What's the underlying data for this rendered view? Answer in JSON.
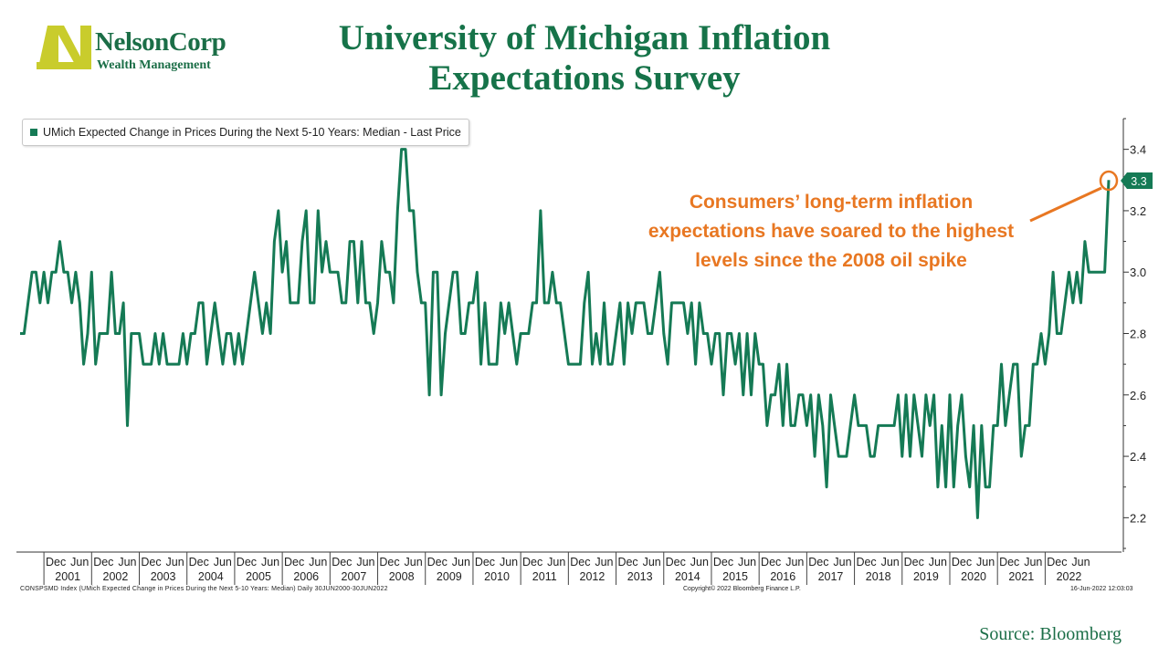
{
  "logo": {
    "name": "NelsonCorp",
    "subtitle": "Wealth Management"
  },
  "title_line1": "University of Michigan Inflation",
  "title_line2": "Expectations Survey",
  "legend_label": "UMich Expected Change in Prices During the Next 5-10 Years: Median - Last Price",
  "annotation": {
    "line1": "Consumers’ long-term inflation",
    "line2": "expectations have soared to the highest",
    "line3": "levels since the 2008 oil spike"
  },
  "last_price_badge": "3.3",
  "footer": {
    "left": "CONSPSMD Index (UMich Expected Change in Prices During the Next 5-10 Years: Median)  Daily 30JUN2000-30JUN2022",
    "middle": "Copyright© 2022 Bloomberg Finance L.P.",
    "right": "16-Jun-2022 12:03:03"
  },
  "source": "Source: Bloomberg",
  "colors": {
    "series": "#157a55",
    "title": "#167349",
    "annotation": "#e87722"
  },
  "chart_data": {
    "type": "line",
    "series": [
      {
        "name": "UMich Expected Change in Prices During the Next 5-10 Years: Median - Last Price",
        "start": "2000-06",
        "frequency": "monthly",
        "values": [
          2.8,
          2.8,
          2.9,
          3.0,
          3.0,
          2.9,
          3.0,
          2.9,
          3.0,
          3.0,
          3.1,
          3.0,
          3.0,
          2.9,
          3.0,
          2.9,
          2.7,
          2.8,
          3.0,
          2.7,
          2.8,
          2.8,
          2.8,
          3.0,
          2.8,
          2.8,
          2.9,
          2.5,
          2.8,
          2.8,
          2.8,
          2.7,
          2.7,
          2.7,
          2.8,
          2.7,
          2.8,
          2.7,
          2.7,
          2.7,
          2.7,
          2.8,
          2.7,
          2.8,
          2.8,
          2.9,
          2.9,
          2.7,
          2.8,
          2.9,
          2.8,
          2.7,
          2.8,
          2.8,
          2.7,
          2.8,
          2.7,
          2.8,
          2.9,
          3.0,
          2.9,
          2.8,
          2.9,
          2.8,
          3.1,
          3.2,
          3.0,
          3.1,
          2.9,
          2.9,
          2.9,
          3.1,
          3.2,
          2.9,
          2.9,
          3.2,
          3.0,
          3.1,
          3.0,
          3.0,
          3.0,
          2.9,
          2.9,
          3.1,
          3.1,
          2.9,
          3.1,
          2.9,
          2.9,
          2.8,
          2.9,
          3.1,
          3.0,
          3.0,
          2.9,
          3.2,
          3.4,
          3.4,
          3.2,
          3.2,
          3.0,
          2.9,
          2.9,
          2.6,
          3.0,
          3.0,
          2.6,
          2.8,
          2.9,
          3.0,
          3.0,
          2.8,
          2.8,
          2.9,
          2.9,
          3.0,
          2.7,
          2.9,
          2.7,
          2.7,
          2.7,
          2.9,
          2.8,
          2.9,
          2.8,
          2.7,
          2.8,
          2.8,
          2.8,
          2.9,
          2.9,
          3.2,
          2.9,
          2.9,
          3.0,
          2.9,
          2.9,
          2.8,
          2.7,
          2.7,
          2.7,
          2.7,
          2.9,
          3.0,
          2.7,
          2.8,
          2.7,
          2.9,
          2.7,
          2.7,
          2.8,
          2.9,
          2.7,
          2.9,
          2.8,
          2.9,
          2.9,
          2.9,
          2.8,
          2.8,
          2.9,
          3.0,
          2.8,
          2.7,
          2.9,
          2.9,
          2.9,
          2.9,
          2.8,
          2.9,
          2.7,
          2.9,
          2.8,
          2.8,
          2.7,
          2.8,
          2.8,
          2.6,
          2.8,
          2.8,
          2.7,
          2.8,
          2.6,
          2.8,
          2.6,
          2.8,
          2.7,
          2.7,
          2.5,
          2.6,
          2.6,
          2.7,
          2.5,
          2.7,
          2.5,
          2.5,
          2.6,
          2.6,
          2.5,
          2.6,
          2.4,
          2.6,
          2.5,
          2.3,
          2.6,
          2.5,
          2.4,
          2.4,
          2.4,
          2.5,
          2.6,
          2.5,
          2.5,
          2.5,
          2.4,
          2.4,
          2.5,
          2.5,
          2.5,
          2.5,
          2.5,
          2.6,
          2.4,
          2.6,
          2.4,
          2.6,
          2.5,
          2.4,
          2.6,
          2.5,
          2.6,
          2.3,
          2.5,
          2.3,
          2.6,
          2.3,
          2.5,
          2.6,
          2.4,
          2.3,
          2.5,
          2.2,
          2.5,
          2.3,
          2.3,
          2.5,
          2.5,
          2.7,
          2.5,
          2.6,
          2.7,
          2.7,
          2.4,
          2.5,
          2.5,
          2.7,
          2.7,
          2.8,
          2.7,
          2.8,
          3.0,
          2.8,
          2.8,
          2.9,
          3.0,
          2.9,
          3.0,
          2.9,
          3.1,
          3.0,
          3.0,
          3.0,
          3.0,
          3.0,
          3.3
        ]
      }
    ],
    "ylim": [
      2.1,
      3.5
    ],
    "yticks": [
      "2.2",
      "2.4",
      "2.6",
      "2.8",
      "3.0",
      "3.2",
      "3.4"
    ],
    "years": [
      "2001",
      "2002",
      "2003",
      "2004",
      "2005",
      "2006",
      "2007",
      "2008",
      "2009",
      "2010",
      "2011",
      "2012",
      "2013",
      "2014",
      "2015",
      "2016",
      "2017",
      "2018",
      "2019",
      "2020",
      "2021",
      "2022"
    ],
    "month_labels": [
      "Dec",
      "Jun"
    ],
    "grid": false,
    "legend_position": "top-left",
    "y_axis_side": "right"
  }
}
